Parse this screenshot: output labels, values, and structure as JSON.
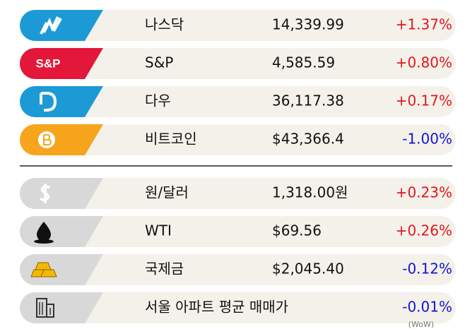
{
  "rows": [
    {
      "name": "나스닥",
      "value": "14,339.99",
      "change": "+1.37%",
      "direction": "up"
    },
    {
      "icon_label": "S&P",
      "name": "S&P",
      "value": "4,585.59",
      "change": "+0.80%",
      "direction": "up"
    },
    {
      "name": "다우",
      "value": "36,117.38",
      "change": "+0.17%",
      "direction": "up"
    },
    {
      "name": "비트코인",
      "value": "$43,366.4",
      "change": "-1.00%",
      "direction": "down"
    },
    {
      "name": "원/달러",
      "value": "1,318.00원",
      "change": "+0.23%",
      "direction": "up"
    },
    {
      "name": "WTI",
      "value": "$69.56",
      "change": "+0.26%",
      "direction": "up"
    },
    {
      "name": "국제금",
      "value": "$2,045.40",
      "change": "-0.12%",
      "direction": "down"
    },
    {
      "name": "서울 아파트 평균 매매가",
      "change": "-0.01%",
      "direction": "down",
      "note": "(WoW)"
    }
  ]
}
